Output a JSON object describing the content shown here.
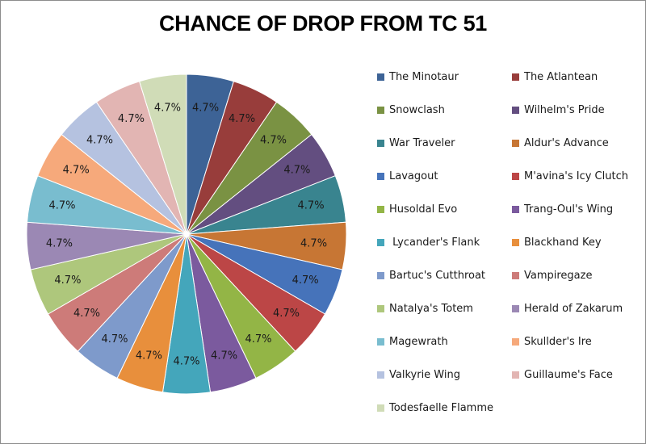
{
  "chart_data": {
    "type": "pie",
    "title": "CHANCE OF DROP FROM TC 51",
    "legend_position": "right",
    "slices": [
      {
        "label": "The Minotaur",
        "value": 4.7,
        "display": "4.7%",
        "color": "#3d6396"
      },
      {
        "label": "The Atlantean",
        "value": 4.7,
        "display": "4.7%",
        "color": "#983d3b"
      },
      {
        "label": "Snowclash",
        "value": 4.7,
        "display": "4.7%",
        "color": "#7a9243"
      },
      {
        "label": "Wilhelm's Pride",
        "value": 4.7,
        "display": "4.7%",
        "color": "#634e80"
      },
      {
        "label": "War Traveler",
        "value": 4.7,
        "display": "4.7%",
        "color": "#39848f"
      },
      {
        "label": "Aldur's Advance",
        "value": 4.7,
        "display": "4.7%",
        "color": "#c77634"
      },
      {
        "label": "Lavagout",
        "value": 4.7,
        "display": "4.7%",
        "color": "#4673ba"
      },
      {
        "label": "M'avina's Icy Clutch",
        "value": 4.7,
        "display": "4.7%",
        "color": "#bc4646"
      },
      {
        "label": "Husoldal Evo",
        "value": 4.7,
        "display": "4.7%",
        "color": "#93b546"
      },
      {
        "label": "Trang-Oul's Wing",
        "value": 4.7,
        "display": "4.7%",
        "color": "#7b5a9e"
      },
      {
        "label": " Lycander's Flank",
        "value": 4.7,
        "display": "4.7%",
        "color": "#44a6bb"
      },
      {
        "label": "Blackhand Key",
        "value": 4.7,
        "display": "4.7%",
        "color": "#e88f3c"
      },
      {
        "label": "Bartuc's Cutthroat",
        "value": 4.7,
        "display": "4.7%",
        "color": "#7e9acb"
      },
      {
        "label": "Vampiregaze",
        "value": 4.7,
        "display": "4.7%",
        "color": "#cd7b79"
      },
      {
        "label": "Natalya's Totem",
        "value": 4.7,
        "display": "4.7%",
        "color": "#aec77c"
      },
      {
        "label": "Herald of Zakarum",
        "value": 4.7,
        "display": "4.7%",
        "color": "#9b88b4"
      },
      {
        "label": "Magewrath",
        "value": 4.7,
        "display": "4.7%",
        "color": "#79bdcf"
      },
      {
        "label": "Skullder's Ire",
        "value": 4.7,
        "display": "4.7%",
        "color": "#f6a97b"
      },
      {
        "label": "Valkyrie Wing",
        "value": 4.7,
        "display": "4.7%",
        "color": "#b5c2e0"
      },
      {
        "label": "Guillaume's Face",
        "value": 4.7,
        "display": "4.7%",
        "color": "#e2b5b3"
      },
      {
        "label": "Todesfaelle Flamme",
        "value": 4.7,
        "display": "4.7%",
        "color": "#d0dcb7"
      }
    ]
  }
}
